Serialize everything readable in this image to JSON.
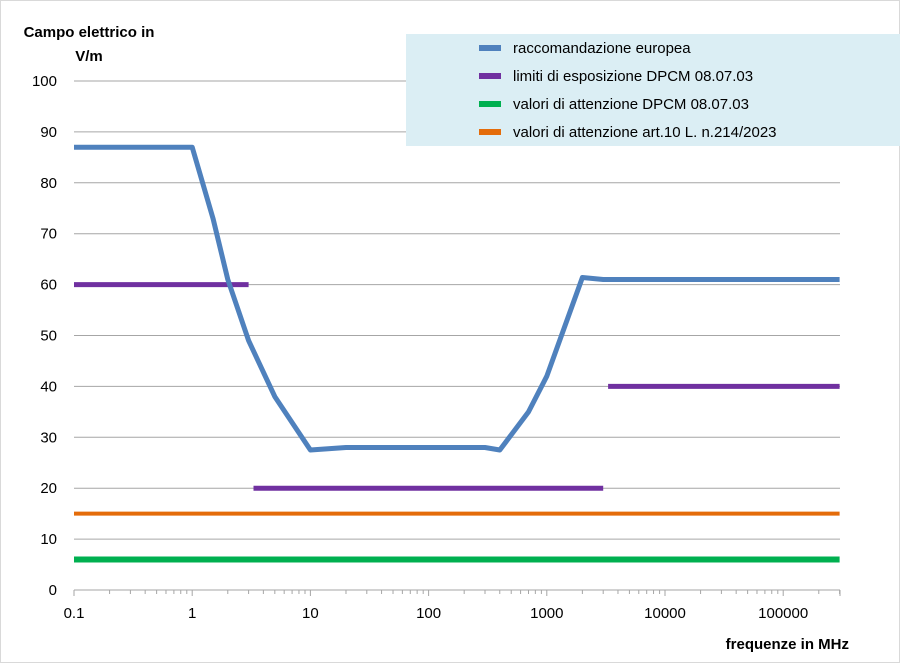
{
  "chart_data": {
    "type": "line",
    "ylabel_lines": [
      "Campo elettrico in",
      "V/m"
    ],
    "xlabel": "frequenze in MHz",
    "x_scale": "log",
    "xlim": [
      0.1,
      300000
    ],
    "ylim": [
      0,
      100
    ],
    "x_ticks": [
      0.1,
      1,
      10,
      100,
      1000,
      10000,
      100000
    ],
    "x_tick_labels": [
      "0.1",
      "1",
      "10",
      "100",
      "1000",
      "10000",
      "100000"
    ],
    "y_ticks": [
      0,
      10,
      20,
      30,
      40,
      50,
      60,
      70,
      80,
      90,
      100
    ],
    "y_tick_labels": [
      "0",
      "10",
      "20",
      "30",
      "40",
      "50",
      "60",
      "70",
      "80",
      "90",
      "100"
    ],
    "grid": "horizontal",
    "legend_position": "top-right",
    "legend_background": "#dbeef4",
    "series": [
      {
        "name": "raccomandazione europea",
        "color": "#4f81bd",
        "segments": [
          [
            [
              0.1,
              87
            ],
            [
              1,
              87
            ],
            [
              1.5,
              73
            ],
            [
              2,
              61
            ],
            [
              3,
              49
            ],
            [
              5,
              38
            ],
            [
              10,
              27.5
            ],
            [
              20,
              28
            ],
            [
              50,
              28
            ],
            [
              100,
              28
            ],
            [
              300,
              28
            ],
            [
              400,
              27.5
            ],
            [
              700,
              35
            ],
            [
              1000,
              42
            ],
            [
              2000,
              61.4
            ],
            [
              3000,
              61
            ],
            [
              10000,
              61
            ],
            [
              100000,
              61
            ],
            [
              300000,
              61
            ]
          ]
        ]
      },
      {
        "name": "limiti di esposizione DPCM 08.07.03",
        "color": "#7030a0",
        "segments": [
          [
            [
              0.1,
              60
            ],
            [
              3,
              60
            ]
          ],
          [
            [
              3.3,
              20
            ],
            [
              3000,
              20
            ]
          ],
          [
            [
              3300,
              40
            ],
            [
              300000,
              40
            ]
          ]
        ]
      },
      {
        "name": "valori di attenzione DPCM 08.07.03",
        "color": "#00b050",
        "segments": [
          [
            [
              0.1,
              6
            ],
            [
              300000,
              6
            ]
          ]
        ]
      },
      {
        "name": "valori di attenzione art.10 L. n.214/2023",
        "color": "#e46c0a",
        "segments": [
          [
            [
              0.1,
              15
            ],
            [
              300000,
              15
            ]
          ]
        ]
      }
    ]
  }
}
